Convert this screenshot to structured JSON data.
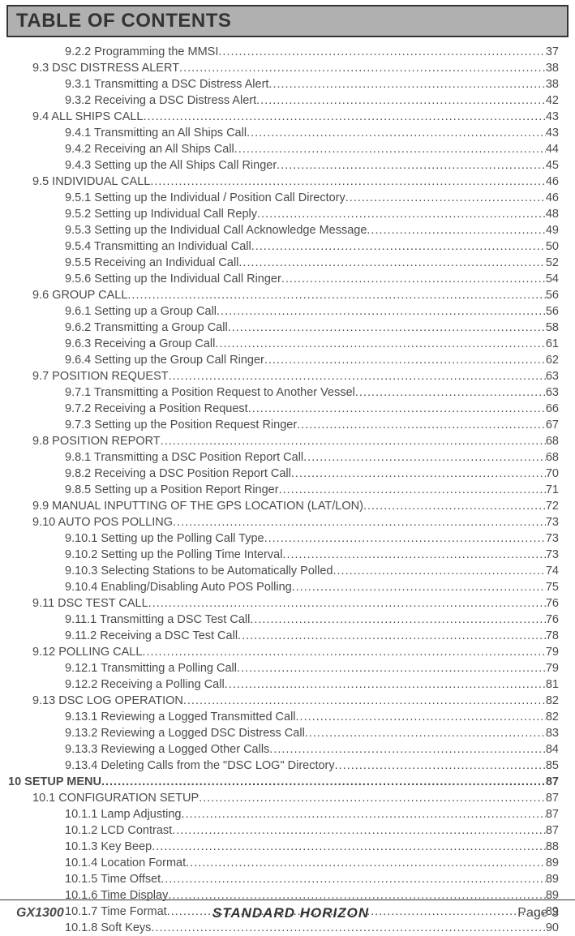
{
  "title": "TABLE OF CONTENTS",
  "entries": [
    {
      "label": "9.2.2  Programming the MMSI",
      "page": "37",
      "indent": 2,
      "bold": false
    },
    {
      "label": "9.3  DSC DISTRESS ALERT",
      "page": "38",
      "indent": 1,
      "bold": false
    },
    {
      "label": "9.3.1  Transmitting a DSC Distress Alert ",
      "page": "38",
      "indent": 2,
      "bold": false
    },
    {
      "label": "9.3.2  Receiving a DSC Distress Alert ",
      "page": "42",
      "indent": 2,
      "bold": false
    },
    {
      "label": "9.4  ALL SHIPS CALL",
      "page": "43",
      "indent": 1,
      "bold": false
    },
    {
      "label": "9.4.1  Transmitting an All Ships Call ",
      "page": "43",
      "indent": 2,
      "bold": false
    },
    {
      "label": "9.4.2  Receiving an All Ships Call",
      "page": "44",
      "indent": 2,
      "bold": false
    },
    {
      "label": "9.4.3  Setting up the All Ships Call Ringer",
      "page": "45",
      "indent": 2,
      "bold": false
    },
    {
      "label": "9.5  INDIVIDUAL CALL",
      "page": "46",
      "indent": 1,
      "bold": false
    },
    {
      "label": "9.5.1  Setting up the Individual / Position Call Directory ",
      "page": "46",
      "indent": 2,
      "bold": false
    },
    {
      "label": "9.5.2  Setting up Individual Call Reply ",
      "page": "48",
      "indent": 2,
      "bold": false
    },
    {
      "label": "9.5.3  Setting up the Individual Call Acknowledge Message ",
      "page": "49",
      "indent": 2,
      "bold": false
    },
    {
      "label": "9.5.4  Transmitting an Individual Call",
      "page": "50",
      "indent": 2,
      "bold": false
    },
    {
      "label": "9.5.5  Receiving an Individual Call",
      "page": "52",
      "indent": 2,
      "bold": false
    },
    {
      "label": "9.5.6  Setting up the Individual Call Ringer",
      "page": "54",
      "indent": 2,
      "bold": false
    },
    {
      "label": "9.6  GROUP CALL",
      "page": "56",
      "indent": 1,
      "bold": false
    },
    {
      "label": "9.6.1  Setting up a Group Call ",
      "page": "56",
      "indent": 2,
      "bold": false
    },
    {
      "label": "9.6.2  Transmitting a Group Call ",
      "page": "58",
      "indent": 2,
      "bold": false
    },
    {
      "label": "9.6.3  Receiving a Group Call",
      "page": "61",
      "indent": 2,
      "bold": false
    },
    {
      "label": "9.6.4  Setting up the Group Call Ringer",
      "page": "62",
      "indent": 2,
      "bold": false
    },
    {
      "label": "9.7  POSITION REQUEST ",
      "page": "63",
      "indent": 1,
      "bold": false
    },
    {
      "label": "9.7.1  Transmitting a Position Request to Another Vessel",
      "page": "63",
      "indent": 2,
      "bold": false
    },
    {
      "label": "9.7.2  Receiving a Position Request",
      "page": "66",
      "indent": 2,
      "bold": false
    },
    {
      "label": "9.7.3  Setting up the Position Request Ringer",
      "page": "67",
      "indent": 2,
      "bold": false
    },
    {
      "label": "9.8  POSITION REPORT",
      "page": "68",
      "indent": 1,
      "bold": false
    },
    {
      "label": "9.8.1  Transmitting a DSC Position Report Call",
      "page": "68",
      "indent": 2,
      "bold": false
    },
    {
      "label": "9.8.2  Receiving a DSC Position Report Call",
      "page": "70",
      "indent": 2,
      "bold": false
    },
    {
      "label": "9.8.5  Setting up a Position Report Ringer ",
      "page": "71",
      "indent": 2,
      "bold": false
    },
    {
      "label": "9.9  MANUAL INPUTTING OF THE GPS LOCATION (LAT/LON)",
      "page": "72",
      "indent": 1,
      "bold": false
    },
    {
      "label": "9.10  AUTO POS POLLING",
      "page": "73",
      "indent": 1,
      "bold": false
    },
    {
      "label": "9.10.1  Setting up the Polling Call Type",
      "page": "73",
      "indent": 2,
      "bold": false
    },
    {
      "label": "9.10.2  Setting up the Polling Time Interval ",
      "page": "73",
      "indent": 2,
      "bold": false
    },
    {
      "label": "9.10.3  Selecting Stations to be Automatically Polled",
      "page": "74",
      "indent": 2,
      "bold": false
    },
    {
      "label": "9.10.4  Enabling/Disabling Auto POS Polling ",
      "page": "75",
      "indent": 2,
      "bold": false
    },
    {
      "label": "9.11  DSC TEST CALL",
      "page": "76",
      "indent": 1,
      "bold": false
    },
    {
      "label": "9.11.1  Transmitting a DSC Test Call ",
      "page": "76",
      "indent": 2,
      "bold": false
    },
    {
      "label": "9.11.2  Receiving a DSC Test Call ",
      "page": "78",
      "indent": 2,
      "bold": false
    },
    {
      "label": "9.12  POLLING CALL ",
      "page": "79",
      "indent": 1,
      "bold": false
    },
    {
      "label": "9.12.1  Transmitting a Polling Call ",
      "page": "79",
      "indent": 2,
      "bold": false
    },
    {
      "label": "9.12.2  Receiving a Polling Call ",
      "page": "81",
      "indent": 2,
      "bold": false
    },
    {
      "label": "9.13  DSC LOG OPERATION",
      "page": "82",
      "indent": 1,
      "bold": false
    },
    {
      "label": "9.13.1  Reviewing a Logged Transmitted Call ",
      "page": "82",
      "indent": 2,
      "bold": false
    },
    {
      "label": "9.13.2  Reviewing a Logged DSC Distress Call ",
      "page": "83",
      "indent": 2,
      "bold": false
    },
    {
      "label": "9.13.3  Reviewing a Logged Other Calls ",
      "page": "84",
      "indent": 2,
      "bold": false
    },
    {
      "label": "9.13.4  Deleting Calls from the \"DSC LOG\" Directory ",
      "page": "85",
      "indent": 2,
      "bold": false
    },
    {
      "label": "10  SETUP MENU ",
      "page": "87",
      "indent": 0,
      "bold": true
    },
    {
      "label": "10.1  CONFIGURATION SETUP",
      "page": "87",
      "indent": 1,
      "bold": false
    },
    {
      "label": "10.1.1  Lamp Adjusting ",
      "page": "87",
      "indent": 2,
      "bold": false
    },
    {
      "label": "10.1.2  LCD Contrast ",
      "page": "87",
      "indent": 2,
      "bold": false
    },
    {
      "label": "10.1.3  Key Beep ",
      "page": "88",
      "indent": 2,
      "bold": false
    },
    {
      "label": "10.1.4  Location Format",
      "page": "89",
      "indent": 2,
      "bold": false
    },
    {
      "label": "10.1.5  Time Offset ",
      "page": "89",
      "indent": 2,
      "bold": false
    },
    {
      "label": "10.1.6  Time Display ",
      "page": "89",
      "indent": 2,
      "bold": false
    },
    {
      "label": "10.1.7  Time Format",
      "page": "89",
      "indent": 2,
      "bold": false
    },
    {
      "label": "10.1.8  Soft Keys ",
      "page": "90",
      "indent": 2,
      "bold": false
    }
  ],
  "footer": {
    "left": "GX1300",
    "center": "STANDARD HORIZON",
    "right": "Page 3"
  }
}
